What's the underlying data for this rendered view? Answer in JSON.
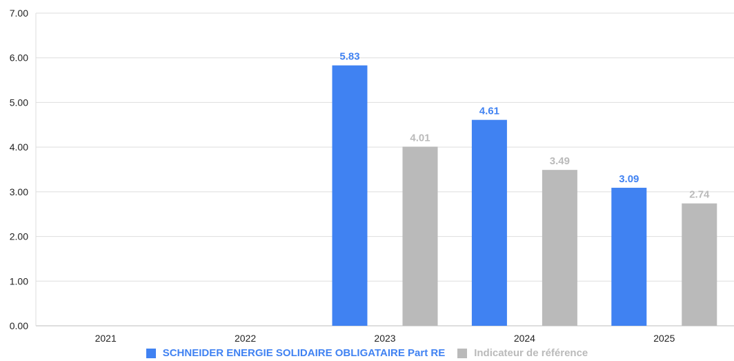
{
  "chart_data": {
    "type": "bar",
    "categories": [
      "2021",
      "2022",
      "2023",
      "2024",
      "2025"
    ],
    "series": [
      {
        "name": "SCHNEIDER ENERGIE SOLIDAIRE OBLIGATAIRE Part RE",
        "color": "#4082f2",
        "values": [
          null,
          null,
          5.83,
          4.61,
          3.09
        ]
      },
      {
        "name": "Indicateur de référence",
        "color": "#bababa",
        "values": [
          null,
          null,
          4.01,
          3.49,
          2.74
        ]
      }
    ],
    "ylim": [
      0,
      7
    ],
    "yticks": [
      "0.00",
      "1.00",
      "2.00",
      "3.00",
      "4.00",
      "5.00",
      "6.00",
      "7.00"
    ],
    "grid": true,
    "legend_position": "bottom",
    "value_labels": true
  }
}
